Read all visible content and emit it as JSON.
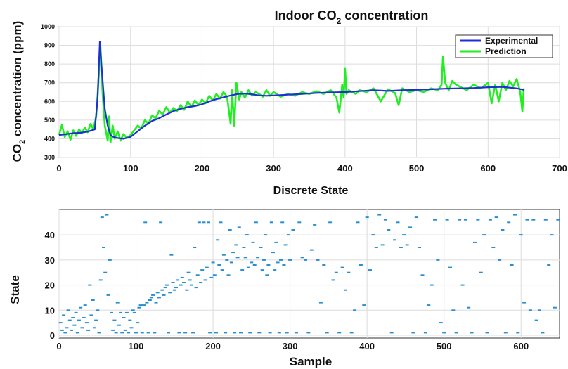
{
  "chart_data": [
    {
      "type": "line",
      "title_main": "Indoor CO",
      "title_sub": "2",
      "title_tail": " concentration",
      "ylabel_main": "CO",
      "ylabel_sub": "2",
      "ylabel_tail": " concentration (ppm)",
      "xlabel": "",
      "xlim": [
        0,
        700
      ],
      "ylim": [
        300,
        1000
      ],
      "xticks": [
        0,
        100,
        200,
        300,
        400,
        500,
        600,
        700
      ],
      "yticks": [
        300,
        400,
        500,
        600,
        700,
        800,
        900,
        1000
      ],
      "grid": true,
      "legend_position": "top-right",
      "series": [
        {
          "name": "Experimental",
          "color": "#1f2fd6",
          "x": [
            0,
            10,
            20,
            30,
            40,
            50,
            54,
            57,
            60,
            64,
            68,
            72,
            76,
            80,
            90,
            100,
            110,
            120,
            130,
            140,
            150,
            160,
            170,
            180,
            190,
            200,
            210,
            220,
            230,
            240,
            250,
            260,
            270,
            280,
            290,
            300,
            320,
            340,
            360,
            380,
            400,
            420,
            440,
            460,
            480,
            500,
            520,
            540,
            560,
            580,
            600,
            620,
            640,
            650
          ],
          "values": [
            420,
            425,
            430,
            432,
            438,
            450,
            620,
            920,
            760,
            560,
            470,
            420,
            410,
            405,
            400,
            410,
            440,
            470,
            495,
            510,
            530,
            548,
            560,
            570,
            575,
            585,
            600,
            612,
            622,
            632,
            640,
            642,
            638,
            632,
            630,
            632,
            636,
            640,
            645,
            648,
            650,
            655,
            660,
            656,
            660,
            662,
            665,
            668,
            670,
            672,
            676,
            678,
            670,
            662
          ]
        },
        {
          "name": "Prediction",
          "color": "#22ee22",
          "x": [
            0,
            4,
            8,
            12,
            16,
            20,
            24,
            28,
            32,
            36,
            40,
            44,
            48,
            52,
            55,
            58,
            61,
            64,
            68,
            70,
            72,
            75,
            78,
            82,
            86,
            90,
            95,
            100,
            105,
            110,
            115,
            120,
            125,
            130,
            135,
            140,
            145,
            150,
            155,
            160,
            165,
            170,
            175,
            180,
            185,
            190,
            195,
            200,
            205,
            210,
            215,
            220,
            225,
            230,
            235,
            240,
            242,
            245,
            248,
            252,
            255,
            260,
            265,
            270,
            275,
            280,
            285,
            290,
            295,
            300,
            310,
            320,
            330,
            340,
            350,
            360,
            370,
            380,
            388,
            392,
            396,
            398,
            400,
            402,
            405,
            410,
            415,
            420,
            430,
            440,
            450,
            460,
            470,
            475,
            480,
            490,
            500,
            510,
            520,
            530,
            535,
            537,
            540,
            545,
            550,
            555,
            560,
            570,
            580,
            590,
            600,
            605,
            610,
            615,
            620,
            625,
            630,
            635,
            640,
            645,
            648,
            650
          ],
          "values": [
            420,
            475,
            410,
            440,
            395,
            445,
            415,
            450,
            430,
            460,
            435,
            480,
            450,
            520,
            700,
            890,
            640,
            470,
            390,
            520,
            380,
            470,
            400,
            440,
            390,
            425,
            405,
            420,
            445,
            470,
            455,
            500,
            480,
            525,
            510,
            550,
            530,
            570,
            540,
            565,
            548,
            580,
            555,
            600,
            570,
            605,
            580,
            610,
            590,
            630,
            605,
            640,
            615,
            650,
            625,
            480,
            660,
            470,
            700,
            610,
            650,
            620,
            660,
            630,
            650,
            640,
            625,
            660,
            630,
            650,
            625,
            640,
            630,
            650,
            640,
            655,
            640,
            660,
            620,
            540,
            690,
            620,
            775,
            640,
            660,
            650,
            640,
            660,
            650,
            670,
            600,
            665,
            645,
            580,
            670,
            650,
            660,
            650,
            670,
            660,
            690,
            840,
            700,
            660,
            710,
            690,
            680,
            660,
            690,
            670,
            700,
            590,
            690,
            600,
            700,
            660,
            710,
            680,
            720,
            650,
            545,
            670
          ]
        }
      ]
    },
    {
      "type": "scatter",
      "title": "Discrete State",
      "xlabel": "Sample",
      "ylabel": "State",
      "xlim": [
        0,
        650
      ],
      "ylim": [
        0,
        49
      ],
      "xticks": [
        0,
        100,
        200,
        300,
        400,
        500,
        600
      ],
      "yticks": [
        0,
        10,
        20,
        30,
        40
      ],
      "grid": true,
      "color": "#2a8fd0",
      "x": [
        2,
        4,
        6,
        8,
        10,
        12,
        14,
        16,
        18,
        20,
        22,
        24,
        26,
        28,
        30,
        32,
        34,
        36,
        38,
        40,
        42,
        44,
        46,
        48,
        50,
        52,
        54,
        56,
        58,
        60,
        62,
        64,
        66,
        68,
        70,
        72,
        74,
        76,
        78,
        80,
        82,
        84,
        86,
        88,
        90,
        92,
        94,
        96,
        98,
        100,
        102,
        104,
        106,
        108,
        110,
        112,
        114,
        116,
        118,
        120,
        122,
        124,
        126,
        128,
        130,
        132,
        134,
        136,
        138,
        140,
        142,
        144,
        146,
        148,
        150,
        152,
        154,
        156,
        158,
        160,
        162,
        164,
        166,
        168,
        170,
        172,
        174,
        176,
        178,
        180,
        182,
        184,
        186,
        188,
        190,
        192,
        194,
        196,
        198,
        200,
        202,
        204,
        206,
        208,
        210,
        212,
        214,
        216,
        218,
        220,
        222,
        224,
        226,
        228,
        230,
        232,
        234,
        236,
        238,
        240,
        242,
        244,
        246,
        248,
        250,
        252,
        254,
        256,
        258,
        260,
        262,
        264,
        266,
        268,
        270,
        272,
        274,
        276,
        278,
        280,
        282,
        284,
        286,
        288,
        290,
        292,
        294,
        296,
        298,
        300,
        304,
        308,
        312,
        316,
        320,
        324,
        328,
        332,
        336,
        340,
        344,
        348,
        352,
        356,
        360,
        364,
        368,
        372,
        376,
        380,
        384,
        388,
        392,
        396,
        400,
        404,
        408,
        412,
        416,
        420,
        424,
        428,
        432,
        436,
        440,
        444,
        448,
        452,
        456,
        460,
        464,
        468,
        472,
        476,
        480,
        484,
        488,
        492,
        496,
        500,
        504,
        508,
        512,
        516,
        520,
        524,
        528,
        532,
        536,
        540,
        544,
        548,
        552,
        556,
        560,
        564,
        568,
        572,
        576,
        580,
        584,
        588,
        592,
        596,
        600,
        604,
        608,
        612,
        616,
        620,
        624,
        628,
        632,
        636,
        640,
        644,
        648
      ],
      "y": [
        5,
        2,
        8,
        1,
        3,
        10,
        6,
        2,
        7,
        4,
        9,
        1,
        6,
        11,
        3,
        7,
        12,
        5,
        2,
        20,
        8,
        14,
        3,
        6,
        10,
        1,
        22,
        47,
        35,
        25,
        48,
        16,
        30,
        9,
        2,
        6,
        1,
        13,
        4,
        9,
        1,
        7,
        2,
        9,
        1,
        6,
        3,
        10,
        9,
        1,
        5,
        11,
        12,
        1,
        12,
        45,
        13,
        1,
        14,
        15,
        16,
        1,
        13,
        17,
        15,
        45,
        18,
        16,
        19,
        20,
        1,
        17,
        32,
        21,
        18,
        19,
        22,
        1,
        20,
        23,
        21,
        1,
        18,
        25,
        22,
        20,
        1,
        35,
        19,
        24,
        45,
        21,
        26,
        45,
        22,
        27,
        45,
        1,
        23,
        29,
        24,
        1,
        38,
        28,
        45,
        26,
        32,
        1,
        30,
        24,
        42,
        29,
        33,
        1,
        36,
        31,
        43,
        1,
        26,
        35,
        31,
        40,
        27,
        1,
        29,
        37,
        28,
        45,
        31,
        1,
        35,
        26,
        30,
        40,
        24,
        28,
        1,
        45,
        33,
        26,
        37,
        29,
        1,
        30,
        45,
        28,
        36,
        1,
        40,
        30,
        42,
        1,
        45,
        31,
        30,
        1,
        34,
        44,
        30,
        13,
        28,
        1,
        45,
        22,
        25,
        1,
        27,
        18,
        25,
        1,
        10,
        45,
        28,
        12,
        47,
        26,
        40,
        35,
        48,
        36,
        46,
        42,
        1,
        38,
        45,
        35,
        40,
        36,
        43,
        1,
        47,
        35,
        24,
        1,
        12,
        20,
        46,
        30,
        5,
        1,
        46,
        27,
        10,
        1,
        46,
        20,
        46,
        11,
        1,
        37,
        46,
        25,
        40,
        1,
        46,
        35,
        47,
        30,
        42,
        1,
        45,
        28,
        48,
        1,
        40,
        13,
        46,
        10,
        46,
        6,
        10,
        1,
        46,
        28,
        40,
        11,
        46
      ]
    }
  ]
}
